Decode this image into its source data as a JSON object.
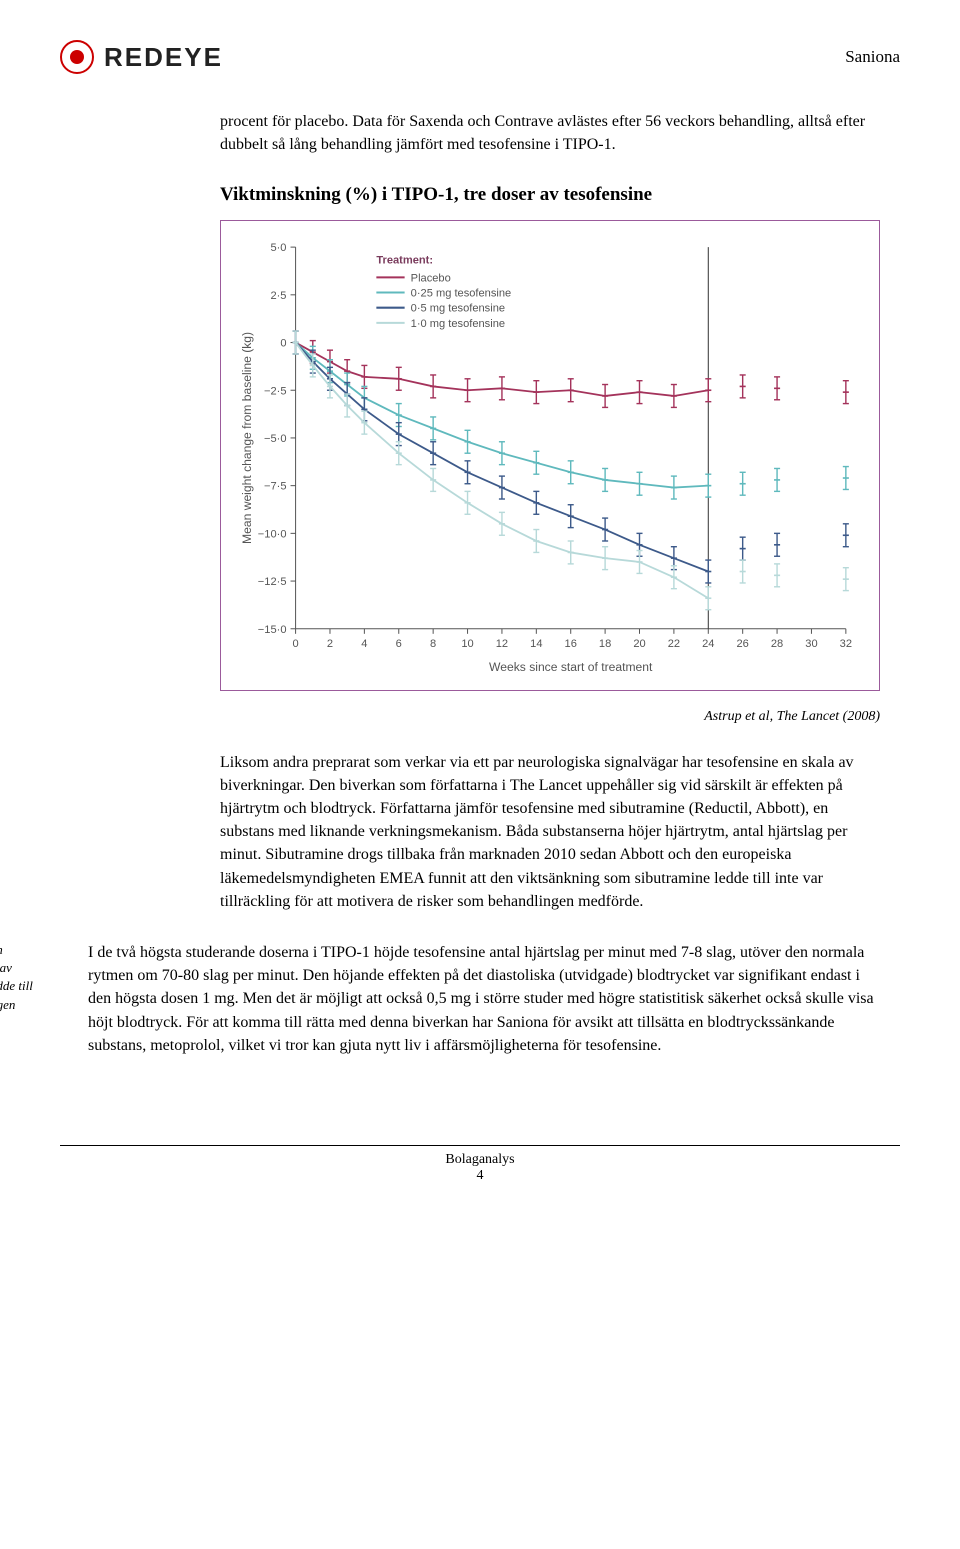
{
  "header": {
    "logo_text": "REDEYE",
    "company": "Saniona"
  },
  "intro_paragraph": "procent för placebo. Data för Saxenda och Contrave avlästes efter 56 veckors behandling, alltså efter dubbelt så lång behandling jämfört med tesofensine i TIPO-1.",
  "section_title": "Viktminskning (%) i TIPO-1, tre doser av tesofensine",
  "chart": {
    "type": "line-errorbar",
    "x_label": "Weeks since start of treatment",
    "y_label": "Mean weight change from baseline (kg)",
    "x_ticks": [
      0,
      2,
      4,
      6,
      8,
      10,
      12,
      14,
      16,
      18,
      20,
      22,
      24,
      26,
      28,
      30,
      32
    ],
    "y_ticks": [
      5.0,
      2.5,
      0,
      -2.5,
      -5.0,
      -7.5,
      -10.0,
      -12.5,
      -15.0
    ],
    "y_tick_labels": [
      "5·0",
      "2·5",
      "0",
      "−2·5",
      "−5·0",
      "−7·5",
      "−10·0",
      "−12·5",
      "−15·0"
    ],
    "xlim": [
      0,
      32
    ],
    "ylim": [
      -15,
      5
    ],
    "legend_title": "Treatment:",
    "legend_title_color": "#7a3c5d",
    "axis_font_size": 11,
    "label_font_size": 12,
    "error_bar_half": 0.6,
    "vline_x": 24,
    "series": [
      {
        "name": "Placebo",
        "color": "#a4335b",
        "connected_until": 24,
        "points": [
          {
            "x": 0,
            "y": 0
          },
          {
            "x": 1,
            "y": -0.5
          },
          {
            "x": 2,
            "y": -1.0
          },
          {
            "x": 3,
            "y": -1.5
          },
          {
            "x": 4,
            "y": -1.8
          },
          {
            "x": 6,
            "y": -1.9
          },
          {
            "x": 8,
            "y": -2.3
          },
          {
            "x": 10,
            "y": -2.5
          },
          {
            "x": 12,
            "y": -2.4
          },
          {
            "x": 14,
            "y": -2.6
          },
          {
            "x": 16,
            "y": -2.5
          },
          {
            "x": 18,
            "y": -2.8
          },
          {
            "x": 20,
            "y": -2.6
          },
          {
            "x": 22,
            "y": -2.8
          },
          {
            "x": 24,
            "y": -2.5
          },
          {
            "x": 26,
            "y": -2.3
          },
          {
            "x": 28,
            "y": -2.4
          },
          {
            "x": 32,
            "y": -2.6
          }
        ]
      },
      {
        "name": "0·25 mg tesofensine",
        "color": "#5fb9bd",
        "connected_until": 24,
        "points": [
          {
            "x": 0,
            "y": 0
          },
          {
            "x": 1,
            "y": -0.8
          },
          {
            "x": 2,
            "y": -1.5
          },
          {
            "x": 3,
            "y": -2.2
          },
          {
            "x": 4,
            "y": -2.9
          },
          {
            "x": 6,
            "y": -3.8
          },
          {
            "x": 8,
            "y": -4.5
          },
          {
            "x": 10,
            "y": -5.2
          },
          {
            "x": 12,
            "y": -5.8
          },
          {
            "x": 14,
            "y": -6.3
          },
          {
            "x": 16,
            "y": -6.8
          },
          {
            "x": 18,
            "y": -7.2
          },
          {
            "x": 20,
            "y": -7.4
          },
          {
            "x": 22,
            "y": -7.6
          },
          {
            "x": 24,
            "y": -7.5
          },
          {
            "x": 26,
            "y": -7.4
          },
          {
            "x": 28,
            "y": -7.2
          },
          {
            "x": 32,
            "y": -7.1
          }
        ]
      },
      {
        "name": "0·5 mg tesofensine",
        "color": "#3d5a8a",
        "connected_until": 24,
        "points": [
          {
            "x": 0,
            "y": 0
          },
          {
            "x": 1,
            "y": -1.0
          },
          {
            "x": 2,
            "y": -1.9
          },
          {
            "x": 3,
            "y": -2.7
          },
          {
            "x": 4,
            "y": -3.5
          },
          {
            "x": 6,
            "y": -4.8
          },
          {
            "x": 8,
            "y": -5.8
          },
          {
            "x": 10,
            "y": -6.8
          },
          {
            "x": 12,
            "y": -7.6
          },
          {
            "x": 14,
            "y": -8.4
          },
          {
            "x": 16,
            "y": -9.1
          },
          {
            "x": 18,
            "y": -9.8
          },
          {
            "x": 20,
            "y": -10.6
          },
          {
            "x": 22,
            "y": -11.3
          },
          {
            "x": 24,
            "y": -12.0
          },
          {
            "x": 26,
            "y": -10.8
          },
          {
            "x": 28,
            "y": -10.6
          },
          {
            "x": 32,
            "y": -10.1
          }
        ]
      },
      {
        "name": "1·0 mg tesofensine",
        "color": "#b7d9d9",
        "connected_until": 24,
        "points": [
          {
            "x": 0,
            "y": 0
          },
          {
            "x": 1,
            "y": -1.2
          },
          {
            "x": 2,
            "y": -2.3
          },
          {
            "x": 3,
            "y": -3.3
          },
          {
            "x": 4,
            "y": -4.2
          },
          {
            "x": 6,
            "y": -5.8
          },
          {
            "x": 8,
            "y": -7.2
          },
          {
            "x": 10,
            "y": -8.4
          },
          {
            "x": 12,
            "y": -9.5
          },
          {
            "x": 14,
            "y": -10.4
          },
          {
            "x": 16,
            "y": -11.0
          },
          {
            "x": 18,
            "y": -11.3
          },
          {
            "x": 20,
            "y": -11.5
          },
          {
            "x": 22,
            "y": -12.3
          },
          {
            "x": 24,
            "y": -13.4
          },
          {
            "x": 26,
            "y": -12.0
          },
          {
            "x": 28,
            "y": -12.2
          },
          {
            "x": 32,
            "y": -12.4
          }
        ]
      }
    ]
  },
  "source": "Astrup et al, The Lancet (2008)",
  "paragraph2": "Liksom andra preprarat som verkar via ett par neurologiska signalvägar har tesofensine en skala av biverkningar. Den biverkan som författarna i The Lancet uppehåller sig vid särskilt är effekten på hjärtrytm och blodtryck. Författarna jämför tesofensine med sibutramine (Reductil, Abbott), en substans med liknande verkningsmekanism. Båda substanserna höjer hjärtrytm, antal hjärtslag per minut. Sibutramine drogs tillbaka från marknaden 2010 sedan Abbott och den europeiska läkemedelsmyndigheten EMEA funnit att den viktsänkning som sibutramine ledde till inte var tillräckling för att motivera de risker som behandlingen medförde.",
  "sidebar_note": "Biverkningsprofilen innehåller höjning av hjärtrytm, vilket ledde till att vidareutvecklingen lades på hyllan",
  "paragraph3": "I de två högsta studerande doserna i TIPO-1 höjde tesofensine antal hjärtslag per minut med 7-8 slag, utöver den normala rytmen om 70-80 slag per minut. Den höjande effekten på det diastoliska (utvidgade) blodtrycket var signifikant endast i den högsta dosen 1 mg. Men det är möjligt att också 0,5 mg i större studer med högre statistitisk säkerhet också skulle visa höjt blodtryck. För att komma till rätta med denna biverkan har Saniona för avsikt att tillsätta en blodtryckssänkande substans, metoprolol, vilket vi tror kan gjuta nytt liv i affärsmöjligheterna för tesofensine.",
  "footer": {
    "label": "Bolaganalys",
    "page": "4"
  }
}
